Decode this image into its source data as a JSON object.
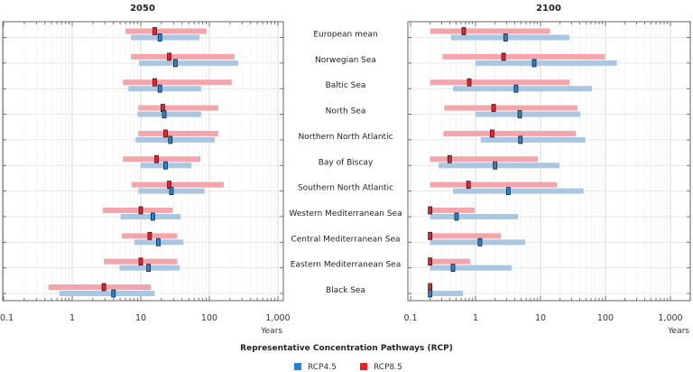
{
  "chart_data": {
    "type": "bar",
    "subtype": "horizontal range bars with median markers, log scale",
    "categories": [
      "European mean",
      "Norwegian Sea",
      "Baltic Sea",
      "North Sea",
      "Northern North Atlantic",
      "Bay of Biscay",
      "Southern North Atlantic",
      "Western Mediterranean Sea",
      "Central Mediterranean Sea",
      "Eastern Mediterranean Sea",
      "Black Sea"
    ],
    "xscale": "log",
    "xlim": [
      0.1,
      1000
    ],
    "xticks": [
      0.1,
      1,
      10,
      100,
      1000
    ],
    "xtick_labels": [
      "0.1",
      "1",
      "10",
      "100",
      "1,000"
    ],
    "xlabel": "Years",
    "grid": true,
    "legend": {
      "title": "Representative Concentration Pathways (RCP)",
      "position": "bottom-center",
      "entries": [
        {
          "name": "RCP4.5",
          "color": "#2b83cf"
        },
        {
          "name": "RCP8.5",
          "color": "#e8222b"
        }
      ]
    },
    "colors": {
      "rcp45_marker": "#2b83cf",
      "rcp45_range": "#a9c6e2",
      "rcp85_marker": "#e8222b",
      "rcp85_range": "#f4a5ab"
    },
    "panels": [
      {
        "title": "2050",
        "series": [
          {
            "name": "RCP8.5",
            "low": [
              6.0,
              7.2,
              5.5,
              9.2,
              9.2,
              5.5,
              7.4,
              2.8,
              5.3,
              2.9,
              0.45
            ],
            "median": [
              16,
              26,
              16,
              21,
              23,
              17,
              26,
              10,
              13.5,
              10,
              2.9
            ],
            "high": [
              91,
              233,
              212,
              135,
              135,
              74,
              162,
              29,
              34,
              34,
              14
            ]
          },
          {
            "name": "RCP4.5",
            "low": [
              7.2,
              9.4,
              6.6,
              9.0,
              8.4,
              10,
              9.2,
              5.1,
              8.1,
              4.9,
              0.65
            ],
            "median": [
              19,
              32,
              19,
              22,
              27,
              23,
              28,
              15,
              18,
              13,
              4.0
            ],
            "high": [
              72,
              263,
              76,
              76,
              120,
              55,
              85,
              38,
              42,
              37,
              16
            ]
          }
        ]
      },
      {
        "title": "2100",
        "series": [
          {
            "name": "RCP8.5",
            "low": [
              0.2,
              0.31,
              0.2,
              0.33,
              0.32,
              0.2,
              0.2,
              0.2,
              0.2,
              0.2,
              0.2
            ],
            "median": [
              0.66,
              2.7,
              0.8,
              1.9,
              1.8,
              0.4,
              0.78,
              0.2,
              0.2,
              0.2,
              0.2
            ],
            "high": [
              14,
              98,
              28,
              37,
              35,
              9.1,
              18,
              0.97,
              2.45,
              0.83,
              0.2
            ]
          },
          {
            "name": "RCP4.5",
            "low": [
              0.42,
              1.0,
              0.45,
              1.0,
              1.2,
              0.27,
              0.45,
              0.2,
              0.2,
              0.2,
              0.2
            ],
            "median": [
              2.9,
              8,
              4.2,
              4.8,
              4.9,
              2.0,
              3.2,
              0.51,
              1.17,
              0.45,
              0.2
            ],
            "high": [
              28,
              150,
              62,
              41,
              49,
              19.5,
              46,
              4.5,
              5.8,
              3.6,
              0.64
            ]
          }
        ]
      }
    ]
  }
}
